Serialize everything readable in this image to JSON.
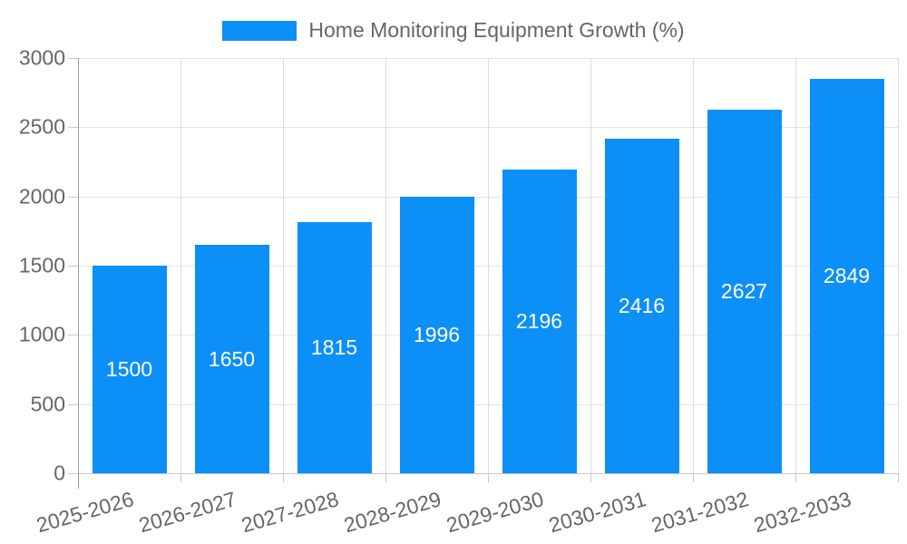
{
  "legend": {
    "label": "Home Monitoring Equipment Growth (%)"
  },
  "colors": {
    "bar": "#0d8ff8",
    "grid": "#e4e4e4",
    "grid_v": "#dcdcdc",
    "tick": "#c9c9c9",
    "tick_text": "#666666",
    "bar_label": "#ffffff",
    "axis_y": "#999999",
    "axis_x": "#c9c9c9",
    "legend_text": "#666666"
  },
  "chart_data": {
    "type": "bar",
    "title": "Home Monitoring Equipment Growth (%)",
    "categories": [
      "2025-2026",
      "2026-2027",
      "2027-2028",
      "2028-2029",
      "2029-2030",
      "2030-2031",
      "2031-2032",
      "2032-2033"
    ],
    "values": [
      1500,
      1650,
      1815,
      1996,
      2196,
      2416,
      2627,
      2849
    ],
    "xlabel": "",
    "ylabel": "",
    "ylim": [
      0,
      3000
    ],
    "yticks": [
      0,
      500,
      1000,
      1500,
      2000,
      2500,
      3000
    ],
    "grid": true,
    "legend_position": "top",
    "bar_value_labels": "centered-inside",
    "x_tick_rotation_deg": -16
  }
}
